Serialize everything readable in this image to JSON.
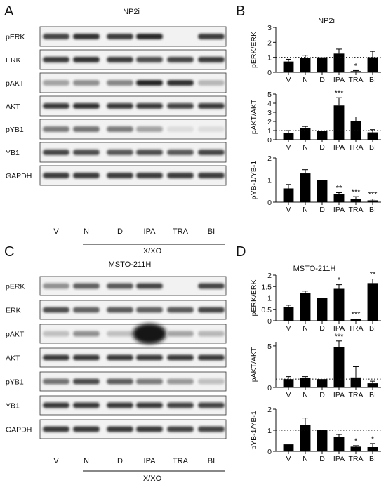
{
  "panels": {
    "A": {
      "letter": "A",
      "cell_line": "NP2i",
      "blot_labels": [
        "pERK",
        "ERK",
        "pAKT",
        "AKT",
        "pYB1",
        "YB1",
        "GAPDH"
      ],
      "lanes": [
        "V",
        "N",
        "D",
        "IPA",
        "TRA",
        "BI"
      ],
      "group_label": "X/XO"
    },
    "B": {
      "letter": "B",
      "cell_line": "NP2i"
    },
    "C": {
      "letter": "C",
      "cell_line": "MSTO-211H",
      "blot_labels": [
        "pERK",
        "ERK",
        "pAKT",
        "AKT",
        "pYB1",
        "YB1",
        "GAPDH"
      ],
      "lanes": [
        "V",
        "N",
        "D",
        "IPA",
        "TRA",
        "BI"
      ],
      "group_label": "X/XO"
    },
    "D": {
      "letter": "D",
      "cell_line": "MSTO-211H"
    }
  },
  "chart_data": [
    {
      "type": "bar",
      "panel": "B",
      "title": "NP2i",
      "xlabel": "",
      "ylabel": "pERK/ERK",
      "categories": [
        "V",
        "N",
        "D",
        "IPA",
        "TRA",
        "BI"
      ],
      "values": [
        0.72,
        0.96,
        1.0,
        1.25,
        0.08,
        1.0
      ],
      "errors": [
        0.15,
        0.18,
        0.02,
        0.3,
        0.04,
        0.4
      ],
      "significance": [
        "",
        "",
        "",
        "",
        "*",
        ""
      ],
      "ylim": [
        0,
        3
      ],
      "yticks": [
        0,
        1,
        2,
        3
      ],
      "reference_line": 1
    },
    {
      "type": "bar",
      "panel": "B",
      "title": "",
      "xlabel": "",
      "ylabel": "pAKT/AKT",
      "categories": [
        "V",
        "N",
        "D",
        "IPA",
        "TRA",
        "BI"
      ],
      "values": [
        0.75,
        1.25,
        1.0,
        3.75,
        2.0,
        0.8
      ],
      "errors": [
        0.25,
        0.2,
        0.02,
        0.85,
        0.5,
        0.3
      ],
      "significance": [
        "",
        "",
        "",
        "***",
        "",
        ""
      ],
      "ylim": [
        0,
        5
      ],
      "yticks": [
        0,
        1,
        2,
        3,
        4,
        5
      ],
      "reference_line": 1
    },
    {
      "type": "bar",
      "panel": "B",
      "title": "",
      "xlabel": "",
      "ylabel": "pYB-1/YB-1",
      "categories": [
        "V",
        "N",
        "D",
        "IPA",
        "TRA",
        "BI"
      ],
      "values": [
        0.62,
        1.3,
        1.0,
        0.35,
        0.15,
        0.08
      ],
      "errors": [
        0.18,
        0.17,
        0.02,
        0.08,
        0.1,
        0.06
      ],
      "significance": [
        "",
        "",
        "",
        "**",
        "***",
        "***"
      ],
      "ylim": [
        0,
        2
      ],
      "yticks": [
        0,
        1,
        2
      ],
      "reference_line": 1
    },
    {
      "type": "bar",
      "panel": "D",
      "title": "MSTO-211H",
      "xlabel": "",
      "ylabel": "pERK/ERK",
      "categories": [
        "V",
        "N",
        "D",
        "IPA",
        "TRA",
        "BI"
      ],
      "values": [
        0.6,
        1.2,
        1.0,
        1.4,
        0.08,
        1.65
      ],
      "errors": [
        0.08,
        0.1,
        0.02,
        0.18,
        0.03,
        0.18
      ],
      "significance": [
        "",
        "",
        "",
        "*",
        "***",
        "**"
      ],
      "ylim": [
        0,
        2
      ],
      "yticks": [
        0,
        0.5,
        1,
        1.5,
        2
      ],
      "yticklabels": [
        "0",
        "0.5",
        "1",
        "1.5",
        "2"
      ],
      "reference_line": 1
    },
    {
      "type": "bar",
      "panel": "D",
      "title": "",
      "xlabel": "",
      "ylabel": "pAKT/AKT",
      "categories": [
        "V",
        "N",
        "D",
        "IPA",
        "TRA",
        "BI"
      ],
      "values": [
        1.0,
        1.1,
        1.0,
        4.85,
        1.2,
        0.5
      ],
      "errors": [
        0.3,
        0.2,
        0.02,
        0.75,
        1.3,
        0.25
      ],
      "significance": [
        "",
        "",
        "",
        "***",
        "",
        ""
      ],
      "ylim": [
        0,
        5.5
      ],
      "yticks": [
        0,
        5
      ],
      "reference_line": 1
    },
    {
      "type": "bar",
      "panel": "D",
      "title": "",
      "xlabel": "",
      "ylabel": "pYB-1/YB-1",
      "categories": [
        "V",
        "N",
        "D",
        "IPA",
        "TRA",
        "BI"
      ],
      "values": [
        0.33,
        1.25,
        1.0,
        0.7,
        0.22,
        0.2
      ],
      "errors": [
        0.03,
        0.33,
        0.02,
        0.1,
        0.05,
        0.17
      ],
      "significance": [
        "",
        "",
        "",
        "",
        "*",
        "*"
      ],
      "ylim": [
        0,
        2
      ],
      "yticks": [
        0,
        1,
        2
      ],
      "reference_line": 1
    }
  ]
}
